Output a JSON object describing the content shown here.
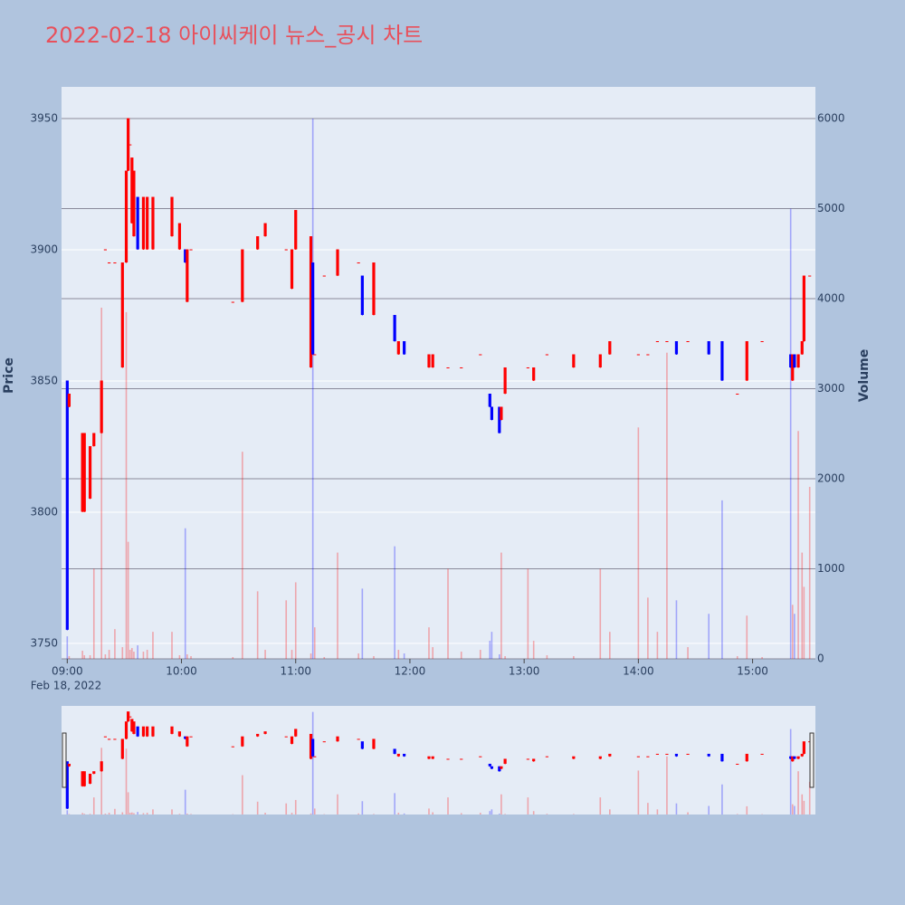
{
  "chart_data": {
    "type": "candlestick",
    "title": "2022-02-18 아이씨케이 뉴스_공시 차트",
    "y_label": "Price",
    "y2_label": "Volume",
    "increasing_color": "#ff0000",
    "decreasing_color": "#0000ff",
    "x": [
      "2022-02-18 09:00",
      "2022-02-18 09:01",
      "2022-02-18 09:08",
      "2022-02-18 09:09",
      "2022-02-18 09:12",
      "2022-02-18 09:14",
      "2022-02-18 09:18",
      "2022-02-18 09:20",
      "2022-02-18 09:22",
      "2022-02-18 09:25",
      "2022-02-18 09:29",
      "2022-02-18 09:31",
      "2022-02-18 09:32",
      "2022-02-18 09:33",
      "2022-02-18 09:34",
      "2022-02-18 09:35",
      "2022-02-18 09:37",
      "2022-02-18 09:40",
      "2022-02-18 09:42",
      "2022-02-18 09:45",
      "2022-02-18 09:55",
      "2022-02-18 09:59",
      "2022-02-18 10:02",
      "2022-02-18 10:03",
      "2022-02-18 10:05",
      "2022-02-18 10:27",
      "2022-02-18 10:32",
      "2022-02-18 10:40",
      "2022-02-18 10:44",
      "2022-02-18 10:55",
      "2022-02-18 10:58",
      "2022-02-18 11:00",
      "2022-02-18 11:08",
      "2022-02-18 11:09",
      "2022-02-18 11:10",
      "2022-02-18 11:15",
      "2022-02-18 11:22",
      "2022-02-18 11:33",
      "2022-02-18 11:35",
      "2022-02-18 11:41",
      "2022-02-18 11:52",
      "2022-02-18 11:54",
      "2022-02-18 11:57",
      "2022-02-18 12:10",
      "2022-02-18 12:12",
      "2022-02-18 12:20",
      "2022-02-18 12:27",
      "2022-02-18 12:37",
      "2022-02-18 12:42",
      "2022-02-18 12:43",
      "2022-02-18 12:47",
      "2022-02-18 12:48",
      "2022-02-18 12:50",
      "2022-02-18 13:02",
      "2022-02-18 13:05",
      "2022-02-18 13:12",
      "2022-02-18 13:26",
      "2022-02-18 13:40",
      "2022-02-18 13:45",
      "2022-02-18 14:00",
      "2022-02-18 14:05",
      "2022-02-18 14:10",
      "2022-02-18 14:15",
      "2022-02-18 14:20",
      "2022-02-18 14:26",
      "2022-02-18 14:37",
      "2022-02-18 14:44",
      "2022-02-18 14:52",
      "2022-02-18 14:57",
      "2022-02-18 15:05",
      "2022-02-18 15:20",
      "2022-02-18 15:21",
      "2022-02-18 15:22",
      "2022-02-18 15:24",
      "2022-02-18 15:26",
      "2022-02-18 15:27",
      "2022-02-18 15:30"
    ],
    "open": [
      3850,
      3840,
      3800,
      3800,
      3805,
      3825,
      3830,
      3900,
      3895,
      3895,
      3855,
      3895,
      3930,
      3940,
      3910,
      3905,
      3920,
      3900,
      3900,
      3900,
      3905,
      3900,
      3900,
      3880,
      3900,
      3880,
      3880,
      3900,
      3905,
      3900,
      3885,
      3900,
      3855,
      3895,
      3860,
      3890,
      3890,
      3895,
      3890,
      3875,
      3875,
      3860,
      3865,
      3855,
      3855,
      3855,
      3855,
      3860,
      3845,
      3840,
      3840,
      3835,
      3845,
      3855,
      3850,
      3860,
      3855,
      3855,
      3860,
      3860,
      3860,
      3865,
      3865,
      3865,
      3865,
      3865,
      3865,
      3845,
      3850,
      3865,
      3860,
      3850,
      3860,
      3855,
      3860,
      3865,
      3890
    ],
    "high": [
      3850,
      3845,
      3830,
      3830,
      3825,
      3830,
      3850,
      3900,
      3895,
      3895,
      3895,
      3930,
      3950,
      3940,
      3935,
      3930,
      3920,
      3920,
      3920,
      3920,
      3920,
      3910,
      3900,
      3900,
      3900,
      3880,
      3900,
      3905,
      3910,
      3900,
      3900,
      3915,
      3905,
      3895,
      3860,
      3890,
      3900,
      3895,
      3890,
      3895,
      3875,
      3865,
      3865,
      3860,
      3860,
      3855,
      3855,
      3860,
      3845,
      3840,
      3840,
      3840,
      3855,
      3855,
      3855,
      3860,
      3860,
      3860,
      3865,
      3860,
      3860,
      3865,
      3865,
      3865,
      3865,
      3865,
      3865,
      3845,
      3865,
      3865,
      3860,
      3860,
      3860,
      3860,
      3865,
      3890,
      3890
    ],
    "low": [
      3755,
      3840,
      3800,
      3800,
      3805,
      3825,
      3830,
      3900,
      3895,
      3895,
      3855,
      3895,
      3930,
      3940,
      3910,
      3905,
      3900,
      3900,
      3900,
      3900,
      3905,
      3900,
      3895,
      3880,
      3900,
      3880,
      3880,
      3900,
      3905,
      3900,
      3885,
      3900,
      3855,
      3860,
      3860,
      3890,
      3890,
      3895,
      3875,
      3875,
      3865,
      3860,
      3860,
      3855,
      3855,
      3855,
      3855,
      3860,
      3840,
      3835,
      3830,
      3835,
      3845,
      3855,
      3850,
      3860,
      3855,
      3855,
      3860,
      3860,
      3860,
      3865,
      3865,
      3860,
      3865,
      3860,
      3850,
      3845,
      3850,
      3865,
      3855,
      3850,
      3855,
      3855,
      3860,
      3865,
      3890
    ],
    "close": [
      3755,
      3845,
      3830,
      3830,
      3825,
      3830,
      3850,
      3900,
      3895,
      3895,
      3895,
      3930,
      3950,
      3940,
      3935,
      3930,
      3900,
      3920,
      3920,
      3920,
      3920,
      3910,
      3895,
      3900,
      3900,
      3880,
      3900,
      3905,
      3910,
      3900,
      3900,
      3915,
      3905,
      3860,
      3860,
      3890,
      3900,
      3895,
      3875,
      3895,
      3865,
      3865,
      3860,
      3860,
      3860,
      3855,
      3855,
      3860,
      3840,
      3835,
      3830,
      3840,
      3855,
      3855,
      3855,
      3860,
      3860,
      3860,
      3865,
      3860,
      3860,
      3865,
      3865,
      3860,
      3865,
      3860,
      3850,
      3845,
      3865,
      3865,
      3855,
      3860,
      3855,
      3860,
      3865,
      3890,
      3890
    ],
    "volume": [
      250,
      30,
      90,
      40,
      40,
      1000,
      3900,
      50,
      100,
      330,
      130,
      3850,
      1300,
      100,
      120,
      80,
      150,
      80,
      100,
      300,
      300,
      40,
      1450,
      50,
      30,
      20,
      2300,
      750,
      100,
      650,
      100,
      850,
      60,
      6000,
      350,
      20,
      1180,
      60,
      780,
      30,
      1250,
      100,
      60,
      350,
      130,
      1000,
      80,
      100,
      200,
      300,
      50,
      1180,
      30,
      1000,
      200,
      40,
      30,
      1000,
      300,
      2570,
      680,
      300,
      3400,
      650,
      130,
      500,
      1760,
      30,
      480,
      20,
      5000,
      600,
      500,
      2530,
      1180,
      800,
      1910
    ],
    "xlim": [
      "2022-02-18 08:57",
      "2022-02-18 15:33"
    ],
    "xticks": [
      {
        "value": "2022-02-18 09:00",
        "label": "09:00"
      },
      {
        "value": "2022-02-18 10:00",
        "label": "10:00"
      },
      {
        "value": "2022-02-18 11:00",
        "label": "11:00"
      },
      {
        "value": "2022-02-18 12:00",
        "label": "12:00"
      },
      {
        "value": "2022-02-18 13:00",
        "label": "13:00"
      },
      {
        "value": "2022-02-18 14:00",
        "label": "14:00"
      },
      {
        "value": "2022-02-18 15:00",
        "label": "15:00"
      }
    ],
    "x_date_label": "Feb 18, 2022",
    "ylim": [
      3744.1,
      3962.1
    ],
    "yticks": [
      3750,
      3800,
      3850,
      3900,
      3950
    ],
    "y2lim": [
      0,
      6352
    ],
    "y2ticks": [
      0,
      1000,
      2000,
      3000,
      4000,
      5000,
      6000
    ],
    "grid": true,
    "range_slider": true
  }
}
